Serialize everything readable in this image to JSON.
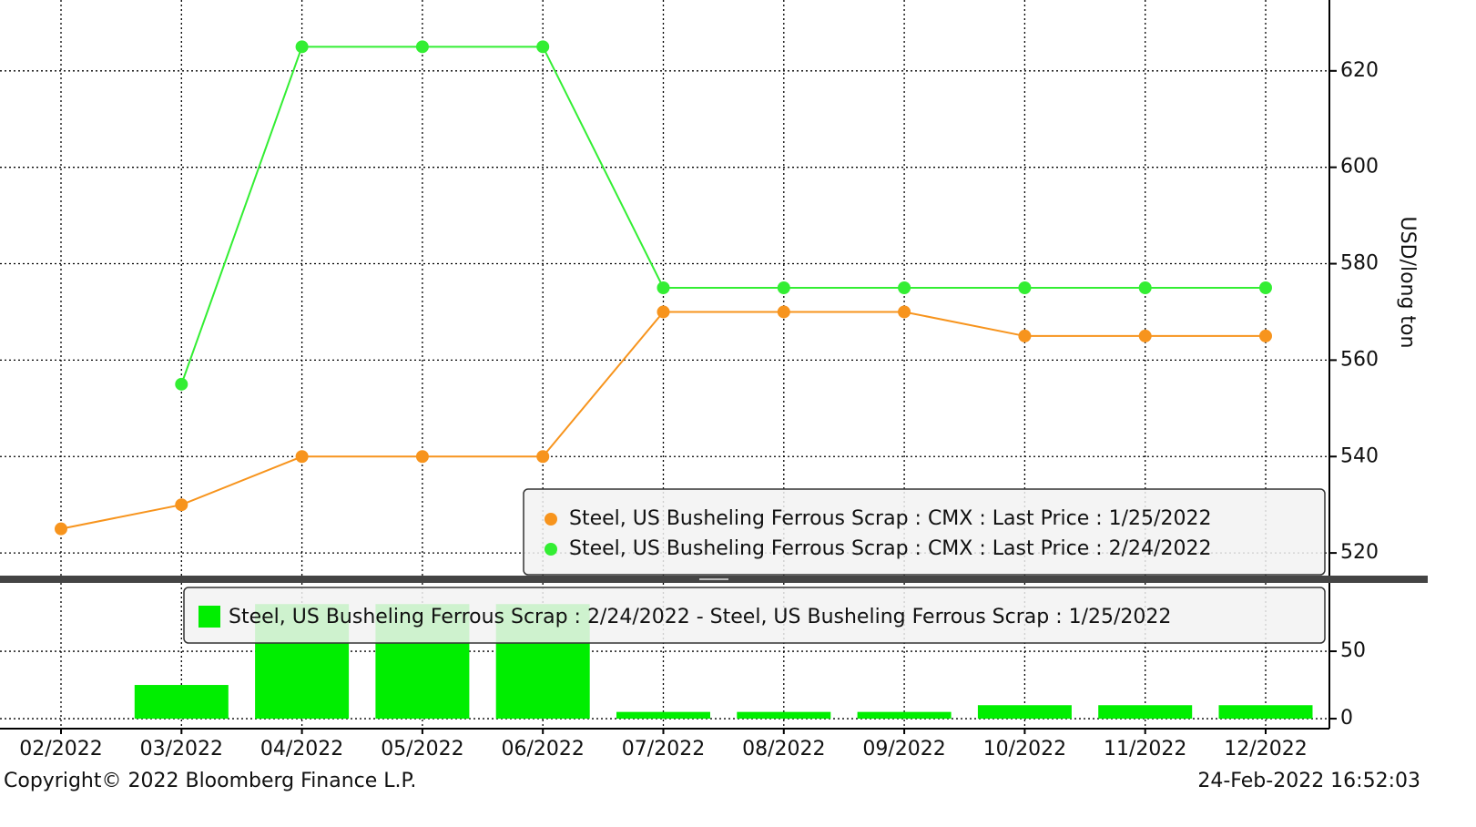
{
  "chart_data": [
    {
      "type": "line",
      "y_label": "USD/long ton",
      "series": [
        {
          "name": "Steel, US Busheling Ferrous Scrap : CMX : Last Price : 1/25/2022",
          "color": "#f7941d",
          "values": [
            525,
            530,
            540,
            540,
            540,
            570,
            570,
            570,
            565,
            565,
            565
          ]
        },
        {
          "name": "Steel, US Busheling Ferrous Scrap : CMX : Last Price : 2/24/2022",
          "color": "#33ee33",
          "values": [
            null,
            555,
            625,
            625,
            625,
            575,
            575,
            575,
            575,
            575,
            575
          ]
        }
      ],
      "ylim": [
        515.3,
        634.7
      ],
      "yticks": [
        520,
        540,
        560,
        580,
        600,
        620
      ],
      "grid": true
    },
    {
      "type": "bar",
      "categories": [
        "02/2022",
        "03/2022",
        "04/2022",
        "05/2022",
        "06/2022",
        "07/2022",
        "08/2022",
        "09/2022",
        "10/2022",
        "11/2022",
        "12/2022"
      ],
      "series": [
        {
          "name": "Steel, US Busheling Ferrous Scrap : 2/24/2022 - Steel, US Busheling Ferrous Scrap : 1/25/2022",
          "color": "#00ee00",
          "values": [
            null,
            25,
            85,
            85,
            85,
            5,
            5,
            5,
            10,
            10,
            10
          ]
        }
      ],
      "ylim": [
        -7.4,
        100.7
      ],
      "yticks": [
        0,
        50
      ],
      "grid": true
    }
  ],
  "footer": {
    "copyright": "Copyright© 2022 Bloomberg Finance L.P.",
    "timestamp": "24-Feb-2022 16:52:03"
  }
}
